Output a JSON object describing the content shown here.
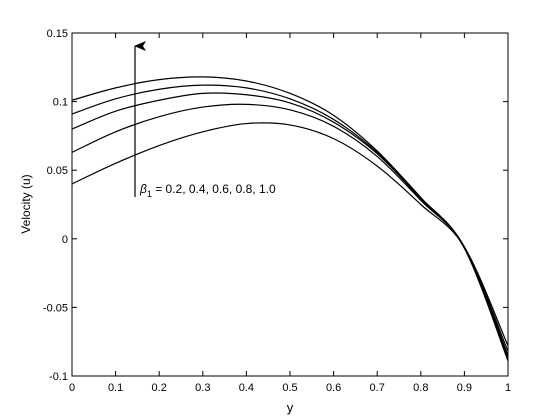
{
  "chart_data": {
    "type": "line",
    "xlabel": "y",
    "ylabel": "Velocity (u)",
    "x": [
      0,
      0.1,
      0.2,
      0.3,
      0.4,
      0.5,
      0.6,
      0.7,
      0.8,
      0.9,
      1
    ],
    "series": [
      {
        "color": "#000000",
        "values": [
          0.04,
          0.055,
          0.068,
          0.078,
          0.084,
          0.083,
          0.073,
          0.053,
          0.025,
          -0.006,
          -0.078
        ]
      },
      {
        "color": "#000000",
        "values": [
          0.063,
          0.078,
          0.089,
          0.096,
          0.098,
          0.094,
          0.082,
          0.06,
          0.028,
          -0.006,
          -0.082
        ]
      },
      {
        "color": "#000000",
        "values": [
          0.08,
          0.093,
          0.101,
          0.106,
          0.105,
          0.099,
          0.085,
          0.062,
          0.029,
          -0.006,
          -0.085
        ]
      },
      {
        "color": "#000000",
        "values": [
          0.091,
          0.102,
          0.109,
          0.112,
          0.11,
          0.102,
          0.087,
          0.063,
          0.03,
          -0.006,
          -0.087
        ]
      },
      {
        "color": "#000000",
        "values": [
          0.101,
          0.11,
          0.116,
          0.118,
          0.115,
          0.106,
          0.09,
          0.064,
          0.03,
          -0.007,
          -0.089
        ]
      }
    ],
    "xlim": [
      0,
      1
    ],
    "xticks": [
      0,
      0.1,
      0.2,
      0.3,
      0.4,
      0.5,
      0.6,
      0.7,
      0.8,
      0.9,
      1
    ],
    "ylim": [
      -0.1,
      0.15
    ],
    "yticks": [
      -0.1,
      -0.05,
      0,
      0.05,
      0.1,
      0.15
    ],
    "grid": false,
    "annotation": {
      "symbol": "β",
      "subscript": "1",
      "text": " = 0.2, 0.4, 0.6, 0.8, 1.0"
    }
  }
}
